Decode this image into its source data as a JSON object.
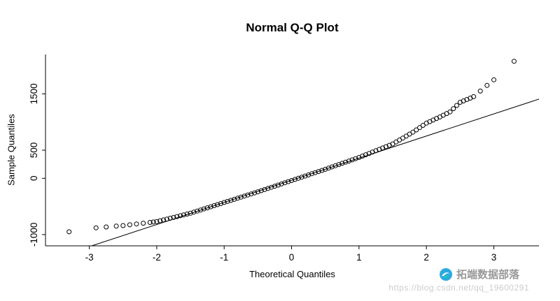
{
  "page": {
    "background": "#ffffff"
  },
  "chart_data": {
    "type": "scatter",
    "title": "Normal Q-Q Plot",
    "xlabel": "Theoretical Quantiles",
    "ylabel": "Sample Quantiles",
    "xlim": [
      -3.65,
      3.67
    ],
    "ylim": [
      -1200,
      2200
    ],
    "x_ticks": [
      -3,
      -2,
      -1,
      0,
      1,
      2,
      3
    ],
    "y_ticks": [
      -1000,
      0,
      500,
      1500
    ],
    "grid": false,
    "legend": false,
    "marker": {
      "shape": "open-circle",
      "radius": 3,
      "color": "#000000"
    },
    "reference_line": {
      "slope": 393,
      "intercept": -35,
      "color": "#000000"
    },
    "points": [
      [
        -3.3,
        -950
      ],
      [
        -2.9,
        -880
      ],
      [
        -2.75,
        -865
      ],
      [
        -2.6,
        -850
      ],
      [
        -2.5,
        -840
      ],
      [
        -2.4,
        -826
      ],
      [
        -2.3,
        -812
      ],
      [
        -2.2,
        -798
      ],
      [
        -2.1,
        -784
      ],
      [
        -2.05,
        -777
      ],
      [
        -2.0,
        -770
      ],
      [
        -1.95,
        -755
      ],
      [
        -1.9,
        -740
      ],
      [
        -1.85,
        -725
      ],
      [
        -1.8,
        -710
      ],
      [
        -1.75,
        -695
      ],
      [
        -1.7,
        -680
      ],
      [
        -1.65,
        -665
      ],
      [
        -1.6,
        -650
      ],
      [
        -1.55,
        -635
      ],
      [
        -1.5,
        -620
      ],
      [
        -1.45,
        -601
      ],
      [
        -1.4,
        -582
      ],
      [
        -1.35,
        -563
      ],
      [
        -1.3,
        -544
      ],
      [
        -1.25,
        -525
      ],
      [
        -1.2,
        -506
      ],
      [
        -1.15,
        -487
      ],
      [
        -1.1,
        -468
      ],
      [
        -1.05,
        -449
      ],
      [
        -1.0,
        -430
      ],
      [
        -0.95,
        -411
      ],
      [
        -0.9,
        -392
      ],
      [
        -0.85,
        -373
      ],
      [
        -0.8,
        -354
      ],
      [
        -0.75,
        -335
      ],
      [
        -0.7,
        -316
      ],
      [
        -0.65,
        -297
      ],
      [
        -0.6,
        -278
      ],
      [
        -0.55,
        -259
      ],
      [
        -0.5,
        -240
      ],
      [
        -0.45,
        -220
      ],
      [
        -0.4,
        -200
      ],
      [
        -0.35,
        -180
      ],
      [
        -0.3,
        -160
      ],
      [
        -0.25,
        -140
      ],
      [
        -0.2,
        -120
      ],
      [
        -0.15,
        -100
      ],
      [
        -0.1,
        -80
      ],
      [
        -0.05,
        -60
      ],
      [
        0,
        -40
      ],
      [
        0.05,
        -20
      ],
      [
        0.1,
        0
      ],
      [
        0.15,
        20
      ],
      [
        0.2,
        40
      ],
      [
        0.25,
        60
      ],
      [
        0.3,
        80
      ],
      [
        0.35,
        100
      ],
      [
        0.4,
        120
      ],
      [
        0.45,
        140
      ],
      [
        0.5,
        160
      ],
      [
        0.55,
        181
      ],
      [
        0.6,
        202
      ],
      [
        0.65,
        223
      ],
      [
        0.7,
        244
      ],
      [
        0.75,
        265
      ],
      [
        0.8,
        286
      ],
      [
        0.85,
        307
      ],
      [
        0.9,
        328
      ],
      [
        0.95,
        349
      ],
      [
        1.0,
        370
      ],
      [
        1.05,
        394
      ],
      [
        1.1,
        418
      ],
      [
        1.15,
        442
      ],
      [
        1.2,
        466
      ],
      [
        1.25,
        490
      ],
      [
        1.3,
        514
      ],
      [
        1.35,
        538
      ],
      [
        1.4,
        562
      ],
      [
        1.45,
        586
      ],
      [
        1.5,
        610
      ],
      [
        1.55,
        645
      ],
      [
        1.6,
        680
      ],
      [
        1.65,
        715
      ],
      [
        1.7,
        750
      ],
      [
        1.75,
        785
      ],
      [
        1.8,
        820
      ],
      [
        1.85,
        860
      ],
      [
        1.9,
        900
      ],
      [
        1.95,
        940
      ],
      [
        2.0,
        980
      ],
      [
        2.05,
        1008
      ],
      [
        2.1,
        1035
      ],
      [
        2.15,
        1063
      ],
      [
        2.2,
        1090
      ],
      [
        2.25,
        1120
      ],
      [
        2.3,
        1150
      ],
      [
        2.35,
        1180
      ],
      [
        2.4,
        1237
      ],
      [
        2.45,
        1294
      ],
      [
        2.5,
        1350
      ],
      [
        2.55,
        1375
      ],
      [
        2.6,
        1400
      ],
      [
        2.65,
        1425
      ],
      [
        2.7,
        1450
      ],
      [
        2.8,
        1550
      ],
      [
        2.9,
        1650
      ],
      [
        3.0,
        1750
      ],
      [
        3.3,
        2080
      ]
    ]
  },
  "watermark": {
    "text": "拓端数据部落",
    "url": "https://blog.csdn.net/qq_19600291",
    "text_color": "#999999",
    "url_color": "#cccccc",
    "logo_colors": [
      "#2ba8e0",
      "#1ec9b6"
    ]
  }
}
